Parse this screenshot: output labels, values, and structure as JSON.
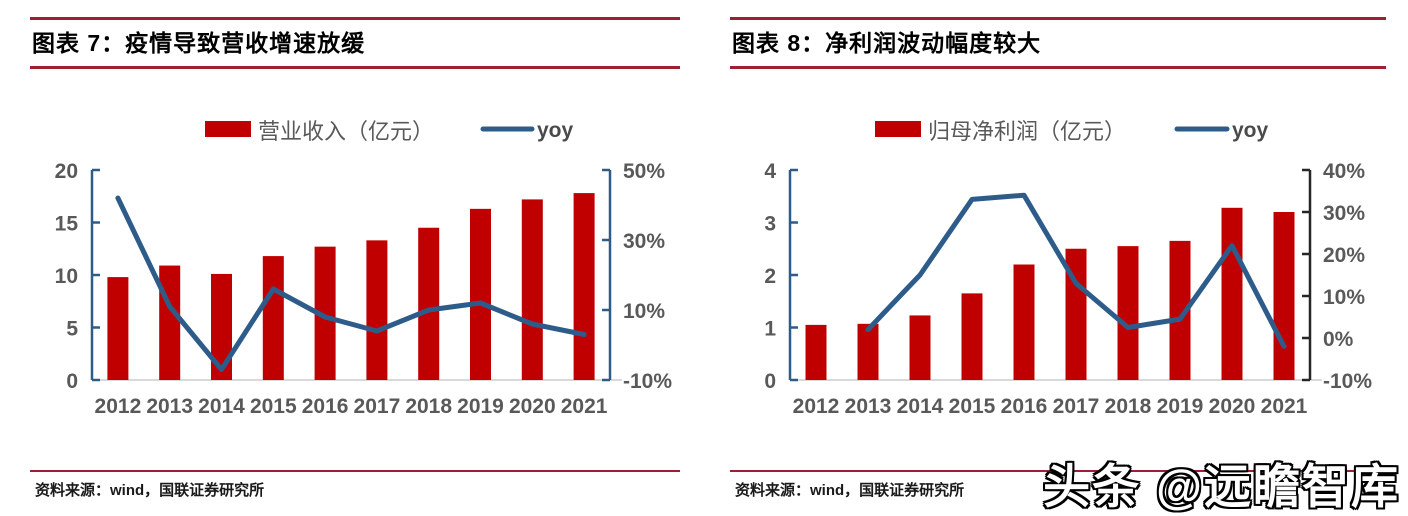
{
  "colors": {
    "bar_red": "#C00000",
    "line_blue": "#2E5C8A",
    "rule_maroon": "#9E1F33",
    "axis_blue": "#2E5C8A",
    "axis_black": "#262626",
    "tick_label_gray": "#595959",
    "baseline_gray": "#D9D9D9"
  },
  "watermark": {
    "text": "头条 @远瞻智库"
  },
  "figures": [
    {
      "title": "图表 7：疫情导致营收增速放缓",
      "source": "资料来源：wind，国联证券研究所",
      "legend": {
        "bar_label": "营业收入（亿元）",
        "line_label": "yoy"
      }
    },
    {
      "title": "图表 8：净利润波动幅度较大",
      "source": "资料来源：wind，国联证券研究所",
      "legend": {
        "bar_label": "归母净利润（亿元）",
        "line_label": "yoy"
      }
    }
  ],
  "chart_data": [
    {
      "type": "bar",
      "title": "图表 7：疫情导致营收增速放缓",
      "categories": [
        "2012",
        "2013",
        "2014",
        "2015",
        "2016",
        "2017",
        "2018",
        "2019",
        "2020",
        "2021"
      ],
      "series": [
        {
          "name": "营业收入（亿元）",
          "type": "bar",
          "axis": "left",
          "values": [
            9.8,
            10.9,
            10.1,
            11.8,
            12.7,
            13.3,
            14.5,
            16.3,
            17.2,
            17.8
          ]
        },
        {
          "name": "yoy",
          "type": "line",
          "axis": "right",
          "values": [
            42,
            11,
            -7,
            16,
            8,
            4,
            10,
            12,
            6,
            3
          ]
        }
      ],
      "left_axis": {
        "min": 0,
        "max": 20,
        "tick_values": [
          20,
          15,
          10,
          5,
          0
        ],
        "tick_labels": [
          "20",
          "15",
          "10",
          "5",
          "0"
        ],
        "color": "#2E5C8A"
      },
      "right_axis": {
        "min": -10,
        "max": 50,
        "tick_values": [
          50,
          30,
          10,
          -10
        ],
        "tick_labels": [
          "50%",
          "30%",
          "10%",
          "-10%"
        ],
        "color": "#2E5C8A"
      },
      "grid": false,
      "legend_position": "top"
    },
    {
      "type": "bar",
      "title": "图表 8：净利润波动幅度较大",
      "categories": [
        "2012",
        "2013",
        "2014",
        "2015",
        "2016",
        "2017",
        "2018",
        "2019",
        "2020",
        "2021"
      ],
      "series": [
        {
          "name": "归母净利润（亿元）",
          "type": "bar",
          "axis": "left",
          "values": [
            1.05,
            1.07,
            1.23,
            1.65,
            2.2,
            2.5,
            2.55,
            2.65,
            3.28,
            3.2
          ]
        },
        {
          "name": "yoy",
          "type": "line",
          "axis": "right",
          "values": [
            null,
            2,
            15,
            33,
            34,
            13,
            2.5,
            4.5,
            22,
            -2
          ]
        }
      ],
      "left_axis": {
        "min": 0,
        "max": 4,
        "tick_values": [
          4,
          3,
          2,
          1,
          0
        ],
        "tick_labels": [
          "4",
          "3",
          "2",
          "1",
          "0"
        ],
        "color": "#2E5C8A"
      },
      "right_axis": {
        "min": -10,
        "max": 40,
        "tick_values": [
          40,
          30,
          20,
          10,
          0,
          -10
        ],
        "tick_labels": [
          "40%",
          "30%",
          "20%",
          "10%",
          "0%",
          "-10%"
        ],
        "color": "#262626"
      },
      "grid": false,
      "legend_position": "top"
    }
  ]
}
